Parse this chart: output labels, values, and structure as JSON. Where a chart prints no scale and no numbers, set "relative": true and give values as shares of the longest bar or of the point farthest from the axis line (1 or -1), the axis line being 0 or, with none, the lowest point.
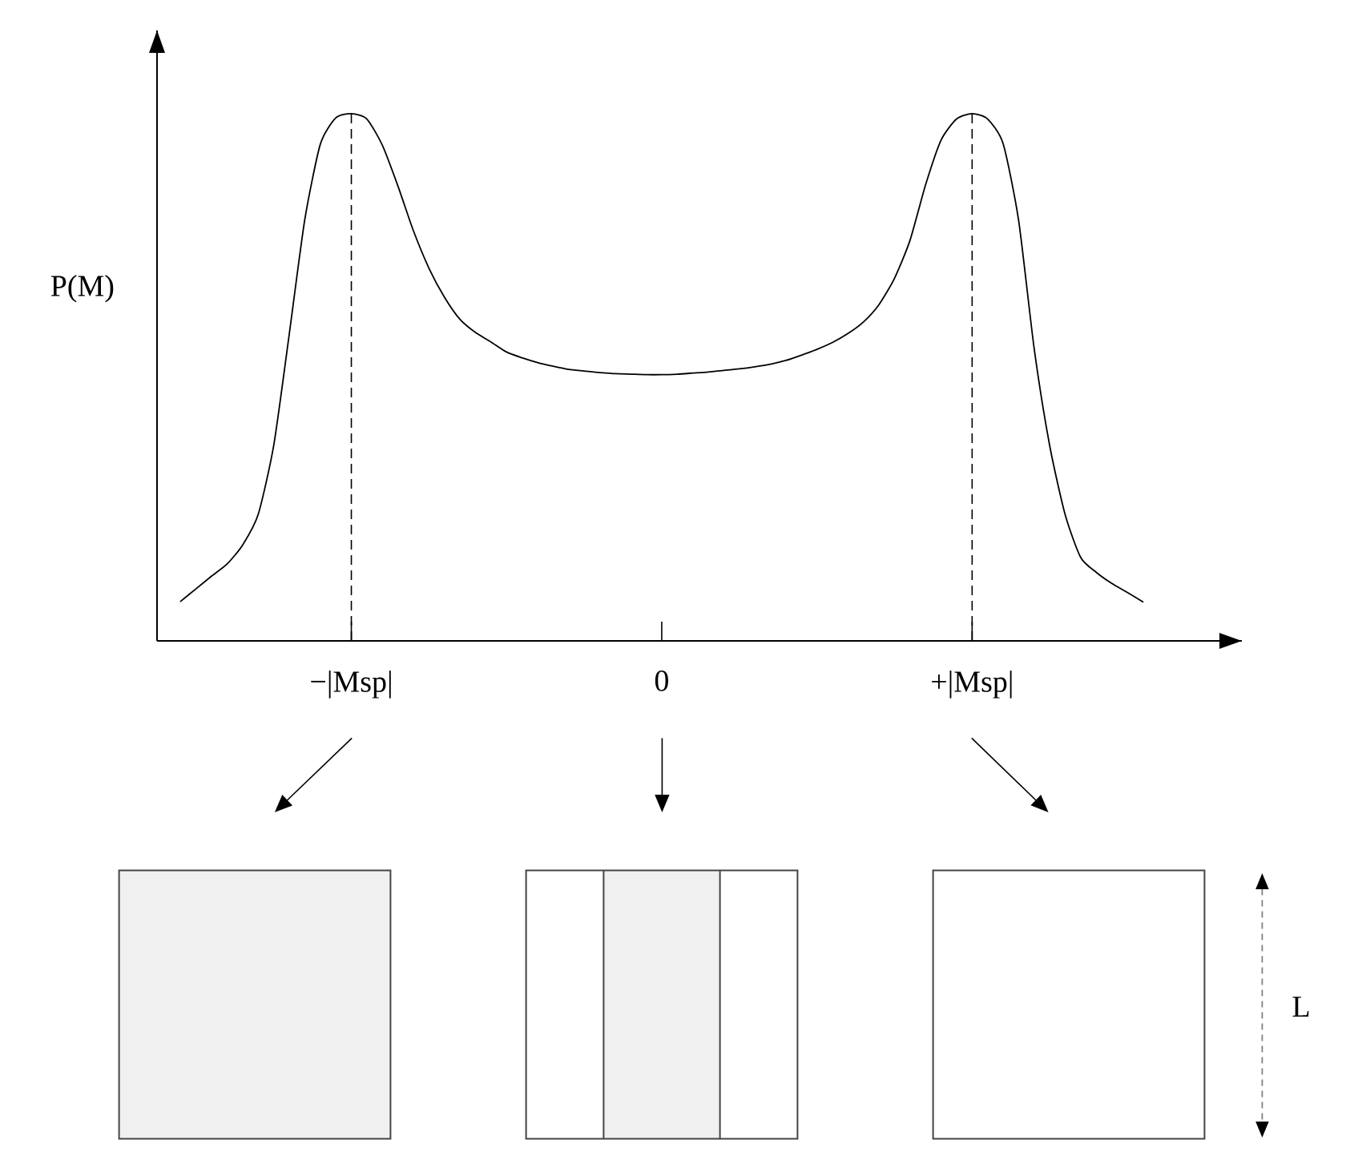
{
  "chart_data": {
    "type": "line",
    "ylabel": "P(M)",
    "relative": true,
    "categories": [
      null,
      null,
      null,
      null,
      null,
      null,
      null,
      null,
      null,
      null,
      null,
      "−|Msp|",
      null,
      null,
      null,
      null,
      null,
      null,
      null,
      null,
      null,
      null,
      null,
      null,
      null,
      null,
      null,
      null,
      null,
      null,
      null,
      "0",
      null,
      null,
      null,
      null,
      null,
      null,
      null,
      null,
      null,
      null,
      null,
      null,
      null,
      null,
      null,
      null,
      null,
      null,
      null,
      "+|Msp|",
      null,
      null,
      null,
      null,
      null,
      null,
      null,
      null,
      null,
      null,
      null
    ],
    "series": [
      {
        "color": "#000000",
        "values": [
          0.075,
          0.099,
          0.123,
          0.146,
          0.182,
          0.24,
          0.371,
          0.582,
          0.799,
          0.942,
          0.992,
          1,
          0.99,
          0.94,
          0.863,
          0.778,
          0.707,
          0.652,
          0.61,
          0.585,
          0.567,
          0.548,
          0.537,
          0.528,
          0.521,
          0.515,
          0.512,
          0.509,
          0.507,
          0.506,
          0.505,
          0.505,
          0.506,
          0.508,
          0.51,
          0.513,
          0.516,
          0.52,
          0.525,
          0.532,
          0.542,
          0.553,
          0.566,
          0.583,
          0.605,
          0.638,
          0.688,
          0.76,
          0.865,
          0.95,
          0.99,
          1,
          0.99,
          0.943,
          0.797,
          0.554,
          0.37,
          0.239,
          0.158,
          0.13,
          0.109,
          0.092,
          0.074
        ]
      }
    ],
    "ref_lines": [
      {
        "axis": "x",
        "value": "−|Msp|",
        "line_style": "dashed",
        "color": "#000000"
      },
      {
        "axis": "x",
        "value": "+|Msp|",
        "line_style": "dashed",
        "color": "#000000"
      }
    ],
    "annotations": [
      "L"
    ]
  }
}
